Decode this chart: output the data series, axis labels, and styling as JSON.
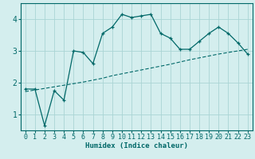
{
  "xlabel": "Humidex (Indice chaleur)",
  "bg_color": "#d4eeee",
  "line_color": "#006868",
  "grid_color": "#aad4d4",
  "x_ticks": [
    0,
    1,
    2,
    3,
    4,
    5,
    6,
    7,
    8,
    9,
    10,
    11,
    12,
    13,
    14,
    15,
    16,
    17,
    18,
    19,
    20,
    21,
    22,
    23
  ],
  "y_ticks": [
    1,
    2,
    3,
    4
  ],
  "ylim": [
    0.5,
    4.5
  ],
  "xlim": [
    -0.5,
    23.5
  ],
  "line1_x": [
    0,
    1,
    2,
    3,
    4,
    5,
    6,
    7,
    8,
    9,
    10,
    11,
    12,
    13,
    14,
    15,
    16,
    17,
    18,
    19,
    20,
    21,
    22,
    23
  ],
  "line1_y": [
    1.8,
    1.8,
    0.65,
    1.75,
    1.45,
    3.0,
    2.95,
    2.6,
    3.55,
    3.75,
    4.15,
    4.05,
    4.1,
    4.15,
    3.55,
    3.4,
    3.05,
    3.05,
    3.3,
    3.55,
    3.75,
    3.55,
    3.25,
    2.9
  ],
  "line2_x": [
    0,
    1,
    2,
    3,
    4,
    5,
    6,
    7,
    8,
    9,
    10,
    11,
    12,
    13,
    14,
    15,
    16,
    17,
    18,
    19,
    20,
    21,
    22,
    23
  ],
  "line2_y": [
    1.72,
    1.77,
    1.82,
    1.87,
    1.92,
    1.97,
    2.02,
    2.08,
    2.14,
    2.22,
    2.28,
    2.34,
    2.4,
    2.46,
    2.52,
    2.58,
    2.65,
    2.72,
    2.78,
    2.84,
    2.9,
    2.95,
    3.0,
    3.05
  ],
  "xlabel_fontsize": 6.5,
  "tick_fontsize": 6
}
